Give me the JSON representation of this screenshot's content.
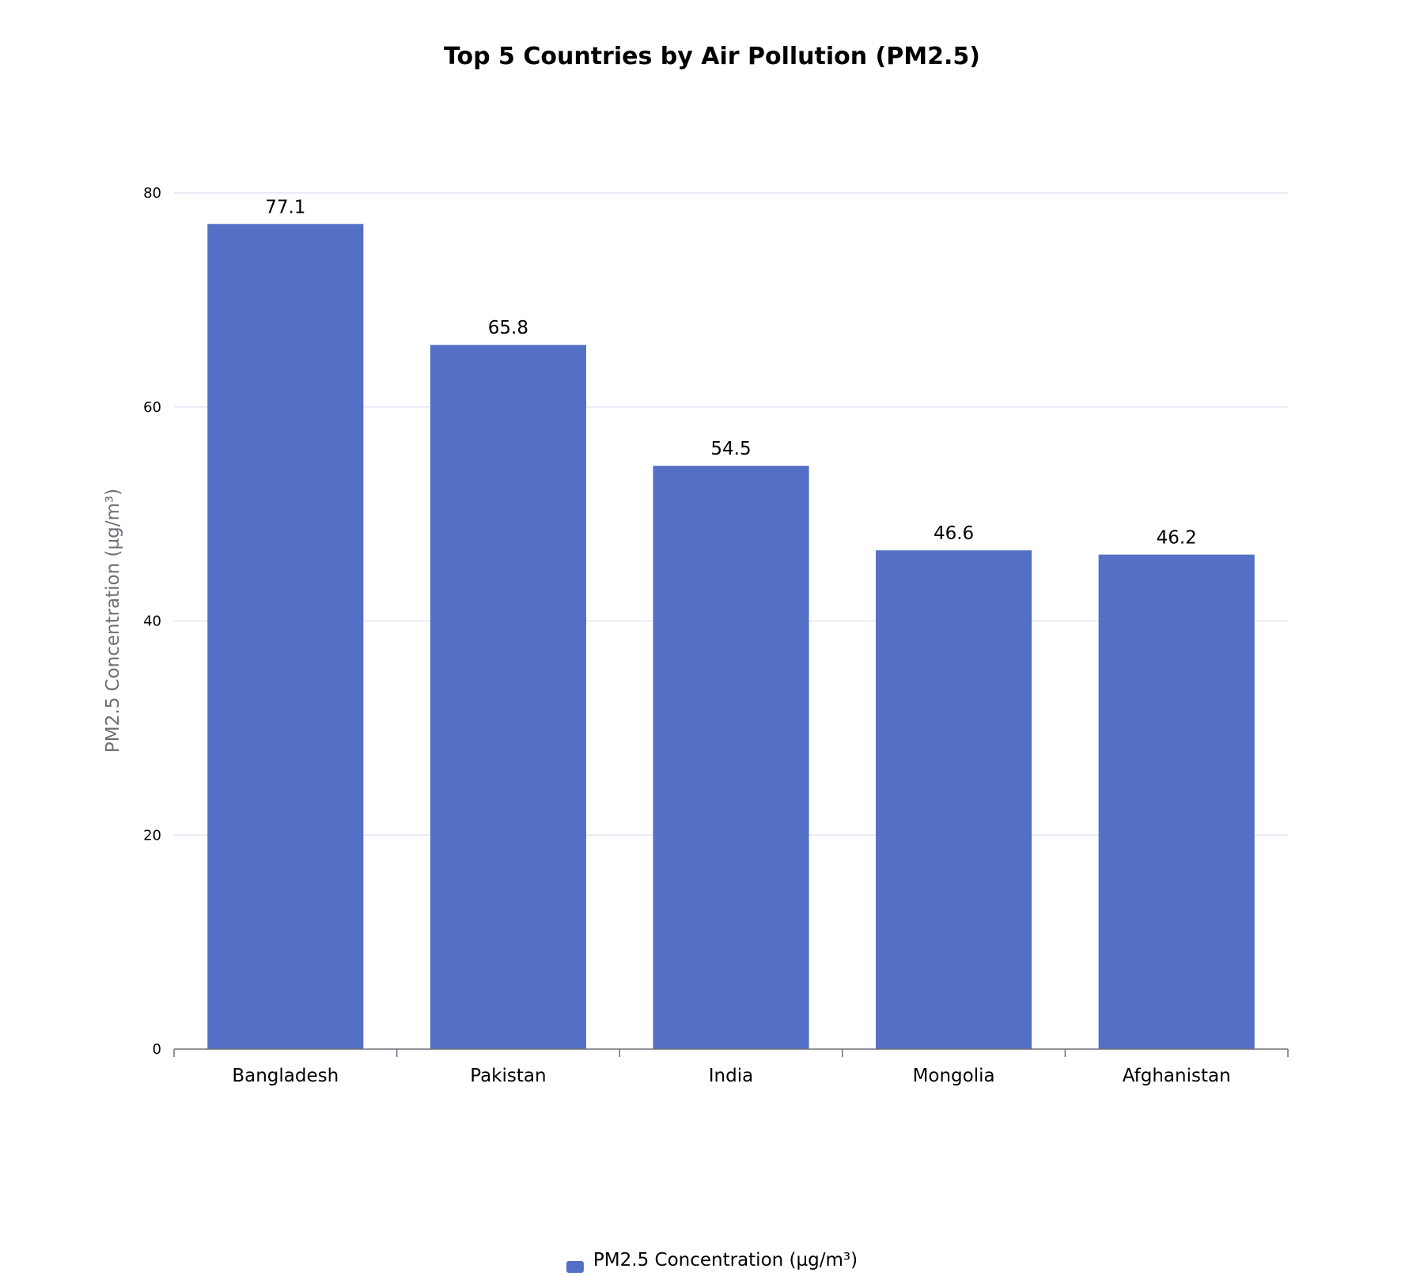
{
  "chart_data": {
    "type": "bar",
    "title": "Top 5 Countries by Air Pollution (PM2.5)",
    "xlabel": "",
    "ylabel": "PM2.5 Concentration (µg/m³)",
    "categories": [
      "Bangladesh",
      "Pakistan",
      "India",
      "Mongolia",
      "Afghanistan"
    ],
    "series": [
      {
        "name": "PM2.5 Concentration (µg/m³)",
        "values": [
          77.1,
          65.8,
          54.5,
          46.6,
          46.2
        ],
        "color": "#5470c6"
      }
    ],
    "ylim": [
      0,
      80
    ],
    "yticks": [
      "0",
      "20",
      "40",
      "60",
      "80"
    ],
    "grid": true,
    "legend_position": "bottom-center"
  }
}
